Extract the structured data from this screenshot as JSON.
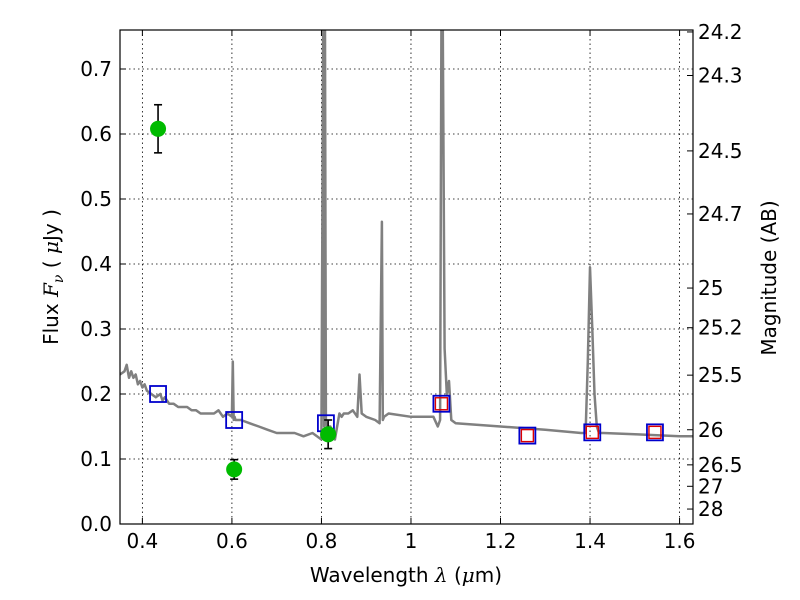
{
  "chart_data": {
    "type": "scatter",
    "title": "",
    "xlabel": "Wavelength  λ (μm)",
    "ylabel": "Flux  F_ν  ( μJy )",
    "y2label": "Magnitude (AB)",
    "xlim": [
      0.35,
      1.63
    ],
    "ylim": [
      0.0,
      0.76
    ],
    "grid": true,
    "xticks": [
      0.4,
      0.6,
      0.8,
      1.0,
      1.2,
      1.4,
      1.6
    ],
    "xtick_labels": [
      "0.4",
      "0.6",
      "0.8",
      "1",
      "1.2",
      "1.4",
      "1.6"
    ],
    "yticks": [
      0.0,
      0.1,
      0.2,
      0.3,
      0.4,
      0.5,
      0.6,
      0.7
    ],
    "ytick_labels": [
      "0.0",
      "0.1",
      "0.2",
      "0.3",
      "0.4",
      "0.5",
      "0.6",
      "0.7"
    ],
    "y2ticks": [
      {
        "label": "24.2",
        "flux": 0.757
      },
      {
        "label": "24.3",
        "flux": 0.69
      },
      {
        "label": "24.5",
        "flux": 0.574
      },
      {
        "label": "24.7",
        "flux": 0.477
      },
      {
        "label": "25",
        "flux": 0.363
      },
      {
        "label": "25.2",
        "flux": 0.302
      },
      {
        "label": "25.5",
        "flux": 0.229
      },
      {
        "label": "26",
        "flux": 0.145
      },
      {
        "label": "26.5",
        "flux": 0.091
      },
      {
        "label": "27",
        "flux": 0.058
      },
      {
        "label": "28",
        "flux": 0.023
      }
    ],
    "series": [
      {
        "kind": "model-spectrum",
        "color": "#808080",
        "x": [
          0.35,
          0.36,
          0.365,
          0.37,
          0.375,
          0.38,
          0.385,
          0.39,
          0.395,
          0.4,
          0.405,
          0.41,
          0.42,
          0.43,
          0.44,
          0.445,
          0.45,
          0.455,
          0.46,
          0.47,
          0.48,
          0.49,
          0.5,
          0.51,
          0.52,
          0.53,
          0.54,
          0.55,
          0.56,
          0.57,
          0.575,
          0.58,
          0.59,
          0.6,
          0.602,
          0.604,
          0.606,
          0.608,
          0.61,
          0.62,
          0.64,
          0.66,
          0.68,
          0.7,
          0.72,
          0.74,
          0.76,
          0.78,
          0.8,
          0.804,
          0.806,
          0.808,
          0.81,
          0.812,
          0.82,
          0.83,
          0.84,
          0.845,
          0.85,
          0.86,
          0.87,
          0.88,
          0.885,
          0.89,
          0.9,
          0.92,
          0.93,
          0.935,
          0.937,
          0.94,
          0.95,
          1.0,
          1.03,
          1.05,
          1.06,
          1.065,
          1.068,
          1.071,
          1.075,
          1.08,
          1.085,
          1.09,
          1.1,
          1.2,
          1.3,
          1.38,
          1.39,
          1.395,
          1.4,
          1.405,
          1.41,
          1.415,
          1.42,
          1.43,
          1.5,
          1.6,
          1.63
        ],
        "y": [
          0.23,
          0.235,
          0.245,
          0.225,
          0.235,
          0.225,
          0.23,
          0.215,
          0.22,
          0.21,
          0.215,
          0.205,
          0.2,
          0.195,
          0.2,
          0.19,
          0.195,
          0.19,
          0.185,
          0.185,
          0.18,
          0.18,
          0.18,
          0.175,
          0.175,
          0.17,
          0.17,
          0.17,
          0.17,
          0.175,
          0.17,
          0.165,
          0.17,
          0.165,
          0.25,
          0.16,
          0.165,
          0.16,
          0.16,
          0.16,
          0.155,
          0.15,
          0.145,
          0.14,
          0.14,
          0.14,
          0.135,
          0.14,
          0.13,
          0.76,
          0.15,
          0.76,
          0.16,
          0.15,
          0.15,
          0.13,
          0.17,
          0.165,
          0.17,
          0.17,
          0.175,
          0.165,
          0.23,
          0.17,
          0.165,
          0.16,
          0.155,
          0.465,
          0.16,
          0.165,
          0.17,
          0.165,
          0.165,
          0.165,
          0.15,
          0.16,
          0.76,
          0.76,
          0.27,
          0.2,
          0.22,
          0.16,
          0.155,
          0.15,
          0.145,
          0.14,
          0.14,
          0.25,
          0.395,
          0.3,
          0.2,
          0.15,
          0.14,
          0.14,
          0.138,
          0.135,
          0.135
        ]
      },
      {
        "name": "",
        "kind": "model-photometry",
        "marker": "square",
        "color": "#0000cc",
        "x": [
          0.435,
          0.605,
          0.81,
          1.068,
          1.26,
          1.405,
          1.545
        ],
        "y": [
          0.2,
          0.16,
          0.155,
          0.185,
          0.136,
          0.141,
          0.141
        ]
      },
      {
        "name": "",
        "kind": "upper-limit-markers",
        "marker": "square",
        "color": "#dd0000",
        "x": [
          1.068,
          1.26,
          1.405,
          1.545
        ],
        "y": [
          0.185,
          0.136,
          0.141,
          0.141
        ]
      },
      {
        "name": "",
        "kind": "observed-photometry",
        "marker": "circle",
        "color": "#00bb00",
        "x": [
          0.435,
          0.605,
          0.815
        ],
        "y": [
          0.608,
          0.084,
          0.138
        ],
        "yerr": [
          0.037,
          0.015,
          0.022
        ]
      }
    ]
  }
}
